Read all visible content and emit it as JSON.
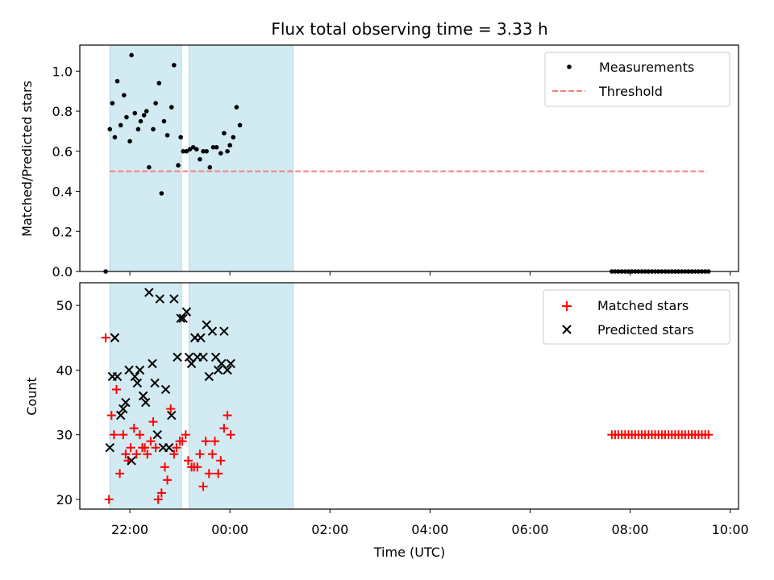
{
  "chart_data": {
    "type": "scatter",
    "title": "Flux total observing time = 3.33 h",
    "xlabel": "Time (UTC)",
    "x_unit": "hours (UTC)",
    "xlim": [
      "21:00",
      "10:10"
    ],
    "xticks": [
      {
        "t": "22:00",
        "label": "22:00"
      },
      {
        "t": "00:00",
        "label": "00:00"
      },
      {
        "t": "02:00",
        "label": "02:00"
      },
      {
        "t": "04:00",
        "label": "04:00"
      },
      {
        "t": "06:00",
        "label": "06:00"
      },
      {
        "t": "08:00",
        "label": "08:00"
      },
      {
        "t": "10:00",
        "label": "10:00"
      }
    ],
    "shaded_intervals": [
      [
        "21:36",
        "23:02"
      ],
      [
        "23:11",
        "01:16"
      ]
    ],
    "shade_color": "#add8e6",
    "panels": [
      {
        "ylabel": "Matched/Predicted stars",
        "ylim": [
          0,
          1.13
        ],
        "yticks": [
          "0.0",
          "0.2",
          "0.4",
          "0.6",
          "0.8",
          "1.0"
        ],
        "legend_position": "upper right",
        "threshold": {
          "name": "Threshold",
          "value": 0.5,
          "x_start": "21:36",
          "x_end": "09:32",
          "color": "#f08080"
        },
        "series": [
          {
            "name": "Measurements",
            "marker": "dot",
            "color": "#000000",
            "points": [
              [
                "21:31",
                0.0
              ],
              [
                "21:36",
                0.71
              ],
              [
                "21:39",
                0.84
              ],
              [
                "21:42",
                0.67
              ],
              [
                "21:45",
                0.95
              ],
              [
                "21:49",
                0.73
              ],
              [
                "21:53",
                0.88
              ],
              [
                "21:56",
                0.77
              ],
              [
                "22:00",
                0.65
              ],
              [
                "22:02",
                1.08
              ],
              [
                "22:06",
                0.79
              ],
              [
                "22:10",
                0.71
              ],
              [
                "22:13",
                0.75
              ],
              [
                "22:17",
                0.78
              ],
              [
                "22:20",
                0.8
              ],
              [
                "22:23",
                0.52
              ],
              [
                "22:28",
                0.71
              ],
              [
                "22:31",
                0.84
              ],
              [
                "22:35",
                0.94
              ],
              [
                "22:38",
                0.39
              ],
              [
                "22:41",
                0.75
              ],
              [
                "22:45",
                0.68
              ],
              [
                "22:50",
                0.82
              ],
              [
                "22:53",
                1.03
              ],
              [
                "22:58",
                0.53
              ],
              [
                "23:01",
                0.67
              ],
              [
                "23:04",
                0.6
              ],
              [
                "23:08",
                0.6
              ],
              [
                "23:12",
                0.61
              ],
              [
                "23:16",
                0.62
              ],
              [
                "23:20",
                0.61
              ],
              [
                "23:24",
                0.56
              ],
              [
                "23:28",
                0.6
              ],
              [
                "23:32",
                0.6
              ],
              [
                "23:36",
                0.52
              ],
              [
                "23:40",
                0.62
              ],
              [
                "23:44",
                0.62
              ],
              [
                "23:49",
                0.59
              ],
              [
                "23:53",
                0.69
              ],
              [
                "23:57",
                0.6
              ],
              [
                "00:00",
                0.63
              ],
              [
                "00:04",
                0.67
              ],
              [
                "00:08",
                0.82
              ],
              [
                "00:12",
                0.73
              ],
              [
                "07:38",
                0.0
              ],
              [
                "07:42",
                0.0
              ],
              [
                "07:46",
                0.0
              ],
              [
                "07:50",
                0.0
              ],
              [
                "07:54",
                0.0
              ],
              [
                "07:58",
                0.0
              ],
              [
                "08:02",
                0.0
              ],
              [
                "08:06",
                0.0
              ],
              [
                "08:10",
                0.0
              ],
              [
                "08:14",
                0.0
              ],
              [
                "08:18",
                0.0
              ],
              [
                "08:22",
                0.0
              ],
              [
                "08:26",
                0.0
              ],
              [
                "08:30",
                0.0
              ],
              [
                "08:34",
                0.0
              ],
              [
                "08:38",
                0.0
              ],
              [
                "08:42",
                0.0
              ],
              [
                "08:46",
                0.0
              ],
              [
                "08:50",
                0.0
              ],
              [
                "08:54",
                0.0
              ],
              [
                "08:58",
                0.0
              ],
              [
                "09:02",
                0.0
              ],
              [
                "09:06",
                0.0
              ],
              [
                "09:10",
                0.0
              ],
              [
                "09:14",
                0.0
              ],
              [
                "09:18",
                0.0
              ],
              [
                "09:22",
                0.0
              ],
              [
                "09:26",
                0.0
              ],
              [
                "09:30",
                0.0
              ],
              [
                "09:34",
                0.0
              ]
            ]
          }
        ]
      },
      {
        "ylabel": "Count",
        "ylim": [
          18.5,
          53.5
        ],
        "yticks": [
          "20",
          "30",
          "40",
          "50"
        ],
        "legend_position": "upper right",
        "series": [
          {
            "name": "Matched stars",
            "marker": "plus",
            "color": "#ff0000",
            "points": [
              [
                "21:31",
                45
              ],
              [
                "21:35",
                20
              ],
              [
                "21:38",
                33
              ],
              [
                "21:41",
                30
              ],
              [
                "21:44",
                37
              ],
              [
                "21:48",
                24
              ],
              [
                "21:52",
                30
              ],
              [
                "21:55",
                27
              ],
              [
                "21:58",
                26
              ],
              [
                "22:01",
                28
              ],
              [
                "22:05",
                31
              ],
              [
                "22:08",
                27
              ],
              [
                "22:12",
                30
              ],
              [
                "22:15",
                28
              ],
              [
                "22:18",
                28
              ],
              [
                "22:21",
                27
              ],
              [
                "22:25",
                29
              ],
              [
                "22:28",
                32
              ],
              [
                "22:31",
                28
              ],
              [
                "22:34",
                20
              ],
              [
                "22:38",
                21
              ],
              [
                "22:42",
                25
              ],
              [
                "22:45",
                23
              ],
              [
                "22:49",
                34
              ],
              [
                "22:53",
                27
              ],
              [
                "22:56",
                28
              ],
              [
                "23:00",
                29
              ],
              [
                "23:03",
                29
              ],
              [
                "23:07",
                30
              ],
              [
                "23:10",
                26
              ],
              [
                "23:14",
                25
              ],
              [
                "23:17",
                25
              ],
              [
                "23:21",
                25
              ],
              [
                "23:24",
                27
              ],
              [
                "23:28",
                22
              ],
              [
                "23:31",
                29
              ],
              [
                "23:35",
                24
              ],
              [
                "23:39",
                27
              ],
              [
                "23:42",
                29
              ],
              [
                "23:46",
                24
              ],
              [
                "23:49",
                26
              ],
              [
                "23:53",
                31
              ],
              [
                "23:57",
                33
              ],
              [
                "00:01",
                30
              ],
              [
                "07:38",
                30
              ],
              [
                "07:42",
                30
              ],
              [
                "07:46",
                30
              ],
              [
                "07:50",
                30
              ],
              [
                "07:54",
                30
              ],
              [
                "07:58",
                30
              ],
              [
                "08:02",
                30
              ],
              [
                "08:06",
                30
              ],
              [
                "08:10",
                30
              ],
              [
                "08:14",
                30
              ],
              [
                "08:18",
                30
              ],
              [
                "08:22",
                30
              ],
              [
                "08:26",
                30
              ],
              [
                "08:30",
                30
              ],
              [
                "08:34",
                30
              ],
              [
                "08:38",
                30
              ],
              [
                "08:42",
                30
              ],
              [
                "08:46",
                30
              ],
              [
                "08:50",
                30
              ],
              [
                "08:54",
                30
              ],
              [
                "08:58",
                30
              ],
              [
                "09:02",
                30
              ],
              [
                "09:06",
                30
              ],
              [
                "09:10",
                30
              ],
              [
                "09:14",
                30
              ],
              [
                "09:18",
                30
              ],
              [
                "09:22",
                30
              ],
              [
                "09:26",
                30
              ],
              [
                "09:30",
                30
              ],
              [
                "09:34",
                30
              ]
            ]
          },
          {
            "name": "Predicted stars",
            "marker": "x",
            "color": "#000000",
            "points": [
              [
                "21:36",
                28
              ],
              [
                "21:39",
                39
              ],
              [
                "21:42",
                45
              ],
              [
                "21:45",
                39
              ],
              [
                "21:49",
                33
              ],
              [
                "21:52",
                34
              ],
              [
                "21:55",
                35
              ],
              [
                "21:59",
                40
              ],
              [
                "22:02",
                26
              ],
              [
                "22:06",
                39
              ],
              [
                "22:09",
                38
              ],
              [
                "22:12",
                40
              ],
              [
                "22:16",
                36
              ],
              [
                "22:19",
                35
              ],
              [
                "22:23",
                52
              ],
              [
                "22:27",
                41
              ],
              [
                "22:30",
                38
              ],
              [
                "22:33",
                30
              ],
              [
                "22:36",
                51
              ],
              [
                "22:40",
                28
              ],
              [
                "22:43",
                37
              ],
              [
                "22:47",
                28
              ],
              [
                "22:50",
                33
              ],
              [
                "22:53",
                51
              ],
              [
                "22:57",
                42
              ],
              [
                "23:01",
                48
              ],
              [
                "23:04",
                48
              ],
              [
                "23:08",
                49
              ],
              [
                "23:11",
                42
              ],
              [
                "23:14",
                41
              ],
              [
                "23:18",
                45
              ],
              [
                "23:21",
                42
              ],
              [
                "23:25",
                45
              ],
              [
                "23:28",
                42
              ],
              [
                "23:32",
                47
              ],
              [
                "23:35",
                39
              ],
              [
                "23:39",
                46
              ],
              [
                "23:43",
                42
              ],
              [
                "23:46",
                40
              ],
              [
                "23:50",
                41
              ],
              [
                "23:53",
                46
              ],
              [
                "23:57",
                40
              ],
              [
                "00:01",
                41
              ]
            ]
          }
        ]
      }
    ]
  }
}
